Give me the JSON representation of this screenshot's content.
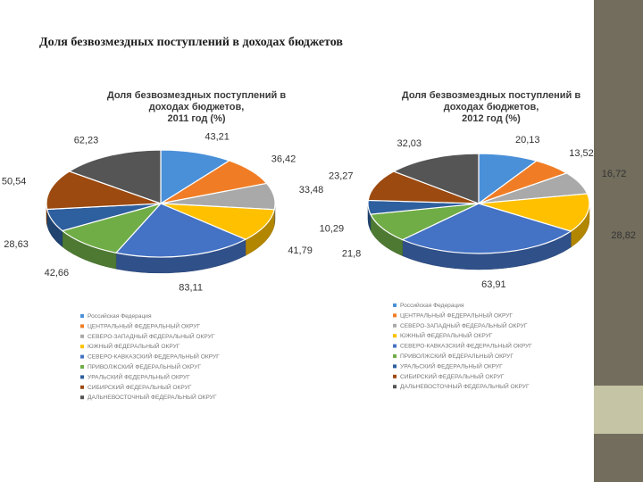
{
  "slide": {
    "title": "Доля безвозмездных поступлений в доходах бюджетов"
  },
  "colors": {
    "band": "#726d5c",
    "band_accent": "#c5c4a5",
    "series": [
      "#4a90d9",
      "#f07d25",
      "#a9a9a9",
      "#ffc000",
      "#4472c4",
      "#70ad47",
      "#2e5f9e",
      "#9c4a10",
      "#555555"
    ]
  },
  "legend_labels": [
    "Российская Федерация",
    "ЦЕНТРАЛЬНЫЙ ФЕДЕРАЛЬНЫЙ ОКРУГ",
    "СЕВЕРО-ЗАПАДНЫЙ ФЕДЕРАЛЬНЫЙ ОКРУГ",
    "ЮЖНЫЙ ФЕДЕРАЛЬНЫЙ ОКРУГ",
    "СЕВЕРО-КАВКАЗСКИЙ ФЕДЕРАЛЬНЫЙ ОКРУГ",
    "ПРИВОЛЖСКИЙ ФЕДЕРАЛЬНЫЙ ОКРУГ",
    "УРАЛЬСКИЙ ФЕДЕРАЛЬНЫЙ ОКРУГ",
    "СИБИРСКИЙ ФЕДЕРАЛЬНЫЙ ОКРУГ",
    "ДАЛЬНЕВОСТОЧНЫЙ ФЕДЕРАЛЬНЫЙ ОКРУГ"
  ],
  "chart_data": [
    {
      "type": "pie",
      "title_lines": [
        "Доля безвозмездных поступлений в",
        "доходах бюджетов,",
        "2011 год (%)"
      ],
      "legend_position": "bottom",
      "categories": [
        "Российская Федерация",
        "ЦЕНТРАЛЬНЫЙ ФЕДЕРАЛЬНЫЙ ОКРУГ",
        "СЕВЕРО-ЗАПАДНЫЙ ФЕДЕРАЛЬНЫЙ ОКРУГ",
        "ЮЖНЫЙ ФЕДЕРАЛЬНЫЙ ОКРУГ",
        "СЕВЕРО-КАВКАЗСКИЙ ФЕДЕРАЛЬНЫЙ ОКРУГ",
        "ПРИВОЛЖСКИЙ ФЕДЕРАЛЬНЫЙ ОКРУГ",
        "УРАЛЬСКИЙ ФЕДЕРАЛЬНЫЙ ОКРУГ",
        "СИБИРСКИЙ ФЕДЕРАЛЬНЫЙ ОКРУГ",
        "ДАЛЬНЕВОСТОЧНЫЙ ФЕДЕРАЛЬНЫЙ ОКРУГ"
      ],
      "values": [
        43.21,
        36.42,
        33.48,
        41.79,
        83.11,
        42.66,
        28.63,
        50.54,
        62.23
      ],
      "value_labels": [
        "43,21",
        "36,42",
        "33,48",
        "41,79",
        "83,11",
        "42,66",
        "28,63",
        "50,54",
        "62,23"
      ]
    },
    {
      "type": "pie",
      "title_lines": [
        "Доля безвозмездных поступлений в",
        "доходах бюджетов,",
        "2012 год (%)"
      ],
      "legend_position": "bottom",
      "categories": [
        "Российская Федерация",
        "ЦЕНТРАЛЬНЫЙ ФЕДЕРАЛЬНЫЙ ОКРУГ",
        "СЕВЕРО-ЗАПАДНЫЙ ФЕДЕРАЛЬНЫЙ ОКРУГ",
        "ЮЖНЫЙ ФЕДЕРАЛЬНЫЙ ОКРУГ",
        "СЕВЕРО-КАВКАЗСКИЙ ФЕДЕРАЛЬНЫЙ ОКРУГ",
        "ПРИВОЛЖСКИЙ ФЕДЕРАЛЬНЫЙ ОКРУГ",
        "УРАЛЬСКИЙ ФЕДЕРАЛЬНЫЙ ОКРУГ",
        "СИБИРСКИЙ ФЕДЕРАЛЬНЫЙ ОКРУГ",
        "ДАЛЬНЕВОСТОЧНЫЙ ФЕДЕРАЛЬНЫЙ ОКРУГ"
      ],
      "values": [
        20.13,
        13.52,
        16.72,
        28.82,
        63.91,
        21.8,
        10.29,
        23.27,
        32.03
      ],
      "value_labels": [
        "20,13",
        "13,52",
        "16,72",
        "28,82",
        "63,91",
        "21,8",
        "10,29",
        "23,27",
        "32,03"
      ]
    }
  ]
}
